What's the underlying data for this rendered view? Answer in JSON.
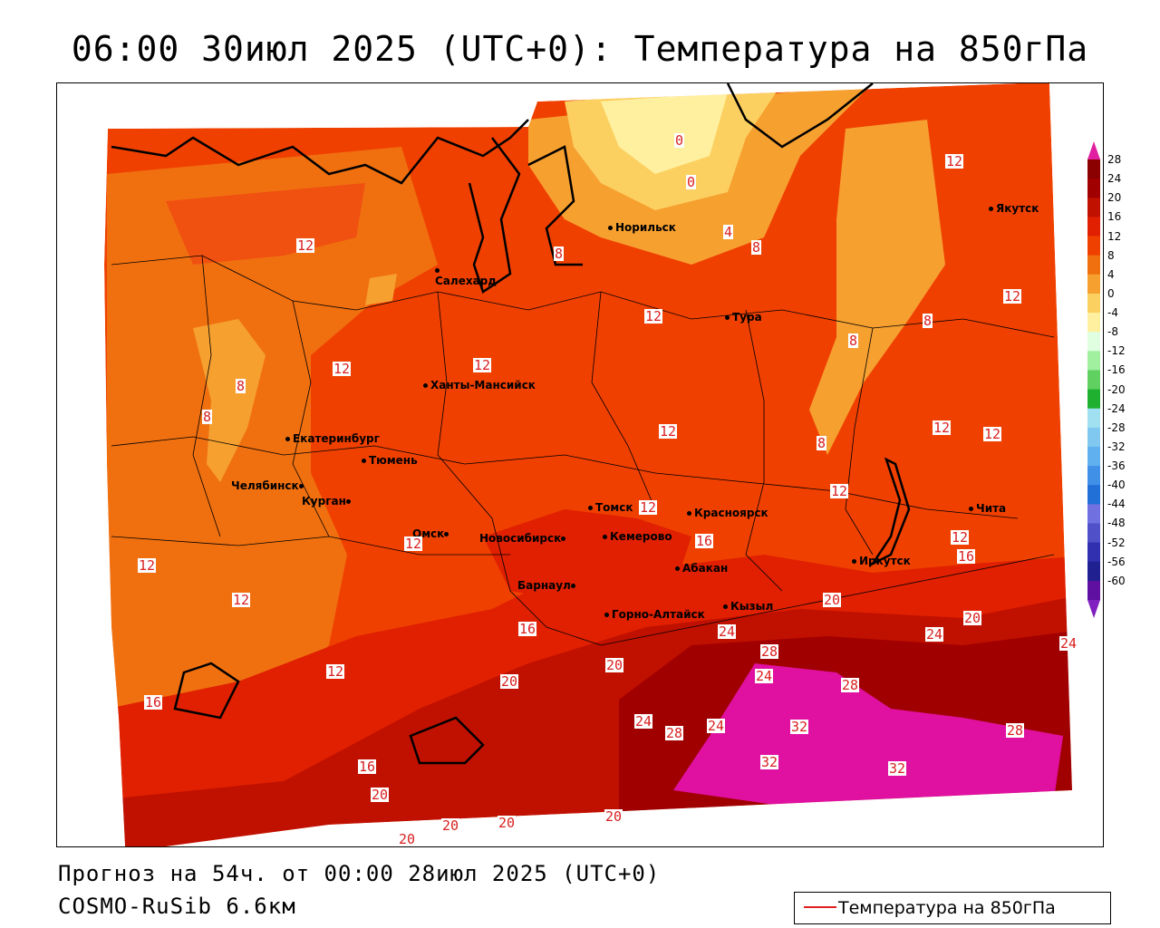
{
  "title": "06:00 30июл 2025 (UTC+0): Температура на 850гПа",
  "footer": {
    "forecast": "Прогноз на 54ч. от 00:00 28июл 2025 (UTC+0)",
    "model": "COSMO-RuSib 6.6км"
  },
  "legend": {
    "label": "Температура на 850гПа",
    "line_color": "#e02020"
  },
  "colorbar": {
    "ticks": [
      "28",
      "24",
      "20",
      "16",
      "12",
      "8",
      "4",
      "0",
      "-4",
      "-8",
      "-12",
      "-16",
      "-20",
      "-24",
      "-28",
      "-32",
      "-36",
      "-40",
      "-44",
      "-48",
      "-52",
      "-56",
      "-60"
    ],
    "colors": [
      "#8b0000",
      "#a00000",
      "#c01000",
      "#e02000",
      "#f04000",
      "#f07010",
      "#f6a030",
      "#fbd060",
      "#fff0a0",
      "#e0ffe0",
      "#a0f0a0",
      "#60d060",
      "#20b030",
      "#a0e0f0",
      "#80c8f0",
      "#60b0f0",
      "#4090e8",
      "#2070d8",
      "#7070e0",
      "#5050c8",
      "#3030b0",
      "#202090",
      "#6010a0"
    ],
    "top_arrow_color": "#e020a0",
    "bottom_arrow_color": "#8020c0"
  },
  "cities": [
    {
      "name": "Норильск"
    },
    {
      "name": "Якутск"
    },
    {
      "name": "Салехард"
    },
    {
      "name": "Тура"
    },
    {
      "name": "Ханты-Мансийск"
    },
    {
      "name": "Екатеринбург"
    },
    {
      "name": "Тюмень"
    },
    {
      "name": "Челябинск"
    },
    {
      "name": "Курган"
    },
    {
      "name": "Омск"
    },
    {
      "name": "Новосибирск"
    },
    {
      "name": "Томск"
    },
    {
      "name": "Кемерово"
    },
    {
      "name": "Красноярск"
    },
    {
      "name": "Абакан"
    },
    {
      "name": "Барнаул"
    },
    {
      "name": "Горно-Алтайск"
    },
    {
      "name": "Кызыл"
    },
    {
      "name": "Иркутск"
    },
    {
      "name": "Чита"
    }
  ],
  "contour_labels": [
    "0",
    "0",
    "4",
    "8",
    "8",
    "12",
    "12",
    "12",
    "12",
    "12",
    "12",
    "8",
    "8",
    "8",
    "8",
    "8",
    "12",
    "12",
    "12",
    "12",
    "12",
    "12",
    "16",
    "16",
    "12",
    "12",
    "16",
    "20",
    "20",
    "24",
    "24",
    "12",
    "16",
    "12",
    "20",
    "24",
    "24",
    "28",
    "28",
    "24",
    "32",
    "16",
    "20",
    "24",
    "28",
    "32",
    "28",
    "32",
    "20",
    "20",
    "20",
    "20",
    "20"
  ]
}
